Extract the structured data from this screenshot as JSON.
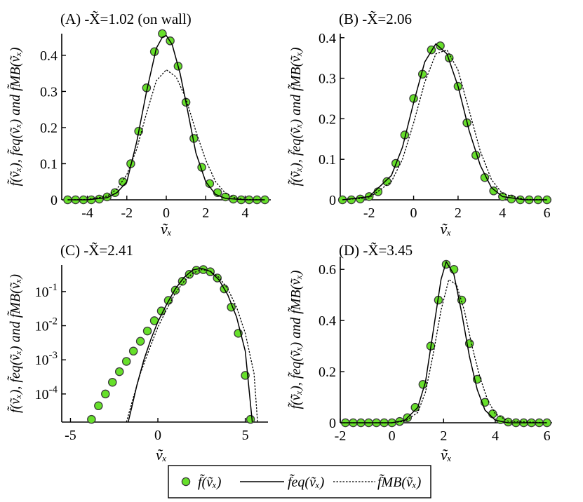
{
  "chart_data": [
    {
      "type": "line",
      "title": "(A) -X̃=1.02 (on wall)",
      "xlabel": "ṽₓ",
      "ylabel": "f̃(ṽₓ), f̃eq(ṽₓ) and f̃MB(ṽₓ)",
      "xlim": [
        -5.3,
        5.3
      ],
      "ylim": [
        0,
        0.46
      ],
      "xticks": [
        -4,
        -2,
        0,
        2,
        4
      ],
      "yticks": [
        0,
        0.1,
        0.2,
        0.3,
        0.4
      ],
      "ytick_labels": [
        "0",
        "0.1",
        "0.2",
        "0.3",
        "0.4"
      ],
      "scale": "linear",
      "series": [
        {
          "kind": "markers",
          "x": [
            -5,
            -4.6,
            -4.2,
            -3.8,
            -3.4,
            -3,
            -2.6,
            -2.2,
            -1.8,
            -1.4,
            -1,
            -0.6,
            -0.2,
            0.2,
            0.6,
            1,
            1.4,
            1.8,
            2.2,
            2.6,
            3,
            3.4,
            3.8,
            4.2,
            4.6,
            5
          ],
          "y": [
            0,
            0,
            0,
            0,
            0.002,
            0.008,
            0.02,
            0.05,
            0.1,
            0.19,
            0.31,
            0.41,
            0.46,
            0.44,
            0.37,
            0.27,
            0.17,
            0.09,
            0.045,
            0.02,
            0.008,
            0.002,
            0,
            0,
            0,
            0
          ]
        },
        {
          "kind": "solid",
          "x": [
            -5,
            -4,
            -3,
            -2.5,
            -2,
            -1.5,
            -1,
            -0.5,
            -0.2,
            0,
            0.3,
            0.7,
            1,
            1.5,
            2,
            2.5,
            3,
            4,
            5
          ],
          "y": [
            0,
            0,
            0.006,
            0.02,
            0.05,
            0.16,
            0.3,
            0.42,
            0.45,
            0.455,
            0.43,
            0.35,
            0.27,
            0.13,
            0.05,
            0.015,
            0.004,
            0,
            0
          ]
        },
        {
          "kind": "dotted",
          "x": [
            -5,
            -4,
            -3,
            -2.5,
            -2,
            -1.5,
            -1,
            -0.5,
            0,
            0.5,
            1,
            1.5,
            2,
            2.5,
            3,
            3.5,
            4,
            5
          ],
          "y": [
            0,
            0.001,
            0.01,
            0.03,
            0.07,
            0.14,
            0.24,
            0.33,
            0.36,
            0.34,
            0.28,
            0.19,
            0.11,
            0.05,
            0.018,
            0.005,
            0.001,
            0
          ]
        }
      ]
    },
    {
      "type": "line",
      "title": "(B) -X̃=2.06",
      "xlabel": "ṽₓ",
      "ylabel": "f̃(ṽₓ), f̃eq(ṽₓ) and f̃MB(ṽₓ)",
      "xlim": [
        -3.3,
        6.2
      ],
      "ylim": [
        0,
        0.41
      ],
      "xticks": [
        -2,
        0,
        2,
        4,
        6
      ],
      "yticks": [
        0,
        0.1,
        0.2,
        0.3,
        0.4
      ],
      "ytick_labels": [
        "0",
        "0.1",
        "0.2",
        "0.3",
        "0.4"
      ],
      "scale": "linear",
      "series": [
        {
          "kind": "markers",
          "x": [
            -3.2,
            -2.8,
            -2.4,
            -2,
            -1.6,
            -1.2,
            -0.8,
            -0.4,
            0,
            0.4,
            0.8,
            1.2,
            1.6,
            2,
            2.4,
            2.8,
            3.2,
            3.6,
            4,
            4.4,
            4.8,
            5.2,
            5.6,
            6
          ],
          "y": [
            0,
            0,
            0.002,
            0.008,
            0.02,
            0.045,
            0.09,
            0.16,
            0.25,
            0.31,
            0.37,
            0.38,
            0.35,
            0.28,
            0.19,
            0.11,
            0.055,
            0.022,
            0.008,
            0.002,
            0,
            0,
            0,
            0
          ]
        },
        {
          "kind": "solid",
          "x": [
            -3.2,
            -2,
            -1,
            -0.5,
            0,
            0.5,
            1,
            1.5,
            2,
            2.5,
            3,
            3.5,
            4,
            5,
            6
          ],
          "y": [
            0,
            0.008,
            0.06,
            0.13,
            0.24,
            0.34,
            0.385,
            0.36,
            0.28,
            0.17,
            0.085,
            0.03,
            0.008,
            0,
            0
          ]
        },
        {
          "kind": "dotted",
          "x": [
            -3.2,
            -2,
            -1,
            -0.5,
            0,
            0.5,
            1,
            1.5,
            2,
            2.5,
            3,
            3.5,
            4,
            5,
            6
          ],
          "y": [
            0,
            0.005,
            0.045,
            0.1,
            0.19,
            0.29,
            0.36,
            0.37,
            0.32,
            0.22,
            0.12,
            0.05,
            0.015,
            0.001,
            0
          ]
        }
      ]
    },
    {
      "type": "line",
      "title": "(C) -X̃=2.41",
      "xlabel": "ṽₓ",
      "ylabel": "f̃(ṽₓ), f̃eq(ṽₓ) and f̃MB(ṽₓ)",
      "xlim": [
        -5.5,
        6.3
      ],
      "ylim": [
        1.5e-05,
        0.6
      ],
      "xticks": [
        -5,
        0,
        5
      ],
      "yticks": [
        0.0001,
        0.001,
        0.01,
        0.1
      ],
      "ytick_labels": [
        "10-4",
        "10-3",
        "10-2",
        "10-1"
      ],
      "scale": "log",
      "series": [
        {
          "kind": "markers",
          "x": [
            -3.8,
            -3.4,
            -3,
            -2.6,
            -2.2,
            -1.8,
            -1.4,
            -1,
            -0.6,
            -0.2,
            0.2,
            0.6,
            1,
            1.4,
            1.8,
            2.2,
            2.6,
            3,
            3.4,
            3.8,
            4.2,
            4.6,
            5,
            5.3
          ],
          "y": [
            1.8e-05,
            4.5e-05,
            0.0001,
            0.00022,
            0.00045,
            0.0009,
            0.0018,
            0.0035,
            0.007,
            0.014,
            0.027,
            0.055,
            0.11,
            0.2,
            0.32,
            0.42,
            0.44,
            0.38,
            0.25,
            0.12,
            0.035,
            0.006,
            0.00035,
            1.8e-05
          ]
        },
        {
          "kind": "solid",
          "x": [
            -1.7,
            -1.5,
            -1.2,
            -0.8,
            -0.4,
            0,
            0.5,
            1,
            1.5,
            2,
            2.5,
            3,
            3.5,
            4,
            4.5,
            5,
            5.4
          ],
          "y": [
            1.5e-05,
            4e-05,
            0.00018,
            0.001,
            0.004,
            0.013,
            0.042,
            0.12,
            0.26,
            0.43,
            0.48,
            0.39,
            0.22,
            0.08,
            0.018,
            0.0018,
            1.5e-05
          ]
        },
        {
          "kind": "dotted",
          "x": [
            -1.8,
            -1.4,
            -1,
            -0.5,
            0,
            0.5,
            1,
            1.5,
            2,
            2.5,
            3,
            3.5,
            4,
            4.5,
            5,
            5.5,
            5.7
          ],
          "y": [
            1.5e-05,
            8e-05,
            0.0004,
            0.002,
            0.009,
            0.03,
            0.09,
            0.2,
            0.35,
            0.44,
            0.4,
            0.26,
            0.12,
            0.035,
            0.006,
            0.0004,
            1.5e-05
          ]
        }
      ]
    },
    {
      "type": "line",
      "title": "(D) -X̃=3.45",
      "xlabel": "ṽₓ",
      "ylabel": "f̃(ṽₓ), f̃eq(ṽₓ) and f̃MB(ṽₓ)",
      "xlim": [
        -2,
        6.2
      ],
      "ylim": [
        0,
        0.65
      ],
      "xticks": [
        -2,
        0,
        2,
        4,
        6
      ],
      "yticks": [
        0,
        0.2,
        0.4,
        0.6
      ],
      "ytick_labels": [
        "0",
        "0.2",
        "0.4",
        "0.6"
      ],
      "scale": "linear",
      "series": [
        {
          "kind": "markers",
          "x": [
            -1.8,
            -1.5,
            -1.2,
            -0.9,
            -0.6,
            -0.3,
            0,
            0.3,
            0.6,
            0.9,
            1.2,
            1.5,
            1.8,
            2.1,
            2.4,
            2.7,
            3,
            3.3,
            3.6,
            3.9,
            4.2,
            4.5,
            4.8,
            5.1,
            5.4,
            5.7,
            6
          ],
          "y": [
            0,
            0,
            0,
            0,
            0,
            0,
            0,
            0.005,
            0.02,
            0.06,
            0.15,
            0.3,
            0.48,
            0.62,
            0.6,
            0.48,
            0.31,
            0.17,
            0.08,
            0.035,
            0.012,
            0.003,
            0,
            0,
            0,
            0,
            0
          ]
        },
        {
          "kind": "solid",
          "x": [
            -2,
            0,
            0.5,
            1,
            1.3,
            1.6,
            1.9,
            2.1,
            2.4,
            2.7,
            3,
            3.3,
            3.6,
            4,
            4.5,
            6
          ],
          "y": [
            0,
            0,
            0.01,
            0.06,
            0.16,
            0.36,
            0.56,
            0.63,
            0.58,
            0.43,
            0.26,
            0.13,
            0.05,
            0.01,
            0,
            0
          ]
        },
        {
          "kind": "dotted",
          "x": [
            -2,
            0,
            0.5,
            1,
            1.3,
            1.6,
            1.9,
            2.2,
            2.5,
            2.8,
            3.1,
            3.4,
            3.7,
            4,
            4.5,
            6
          ],
          "y": [
            0,
            0,
            0.006,
            0.04,
            0.12,
            0.27,
            0.44,
            0.56,
            0.54,
            0.44,
            0.3,
            0.18,
            0.09,
            0.035,
            0.006,
            0
          ]
        }
      ]
    }
  ],
  "legend": {
    "placement": "bottom",
    "entries": [
      "f̃(ṽₓ)",
      "f̃eq(ṽₓ)",
      "f̃MB(ṽₓ)"
    ]
  },
  "colors": {
    "marker_fill": "#66e02a",
    "marker_stroke": "#3a3a3a",
    "line": "#000000"
  }
}
